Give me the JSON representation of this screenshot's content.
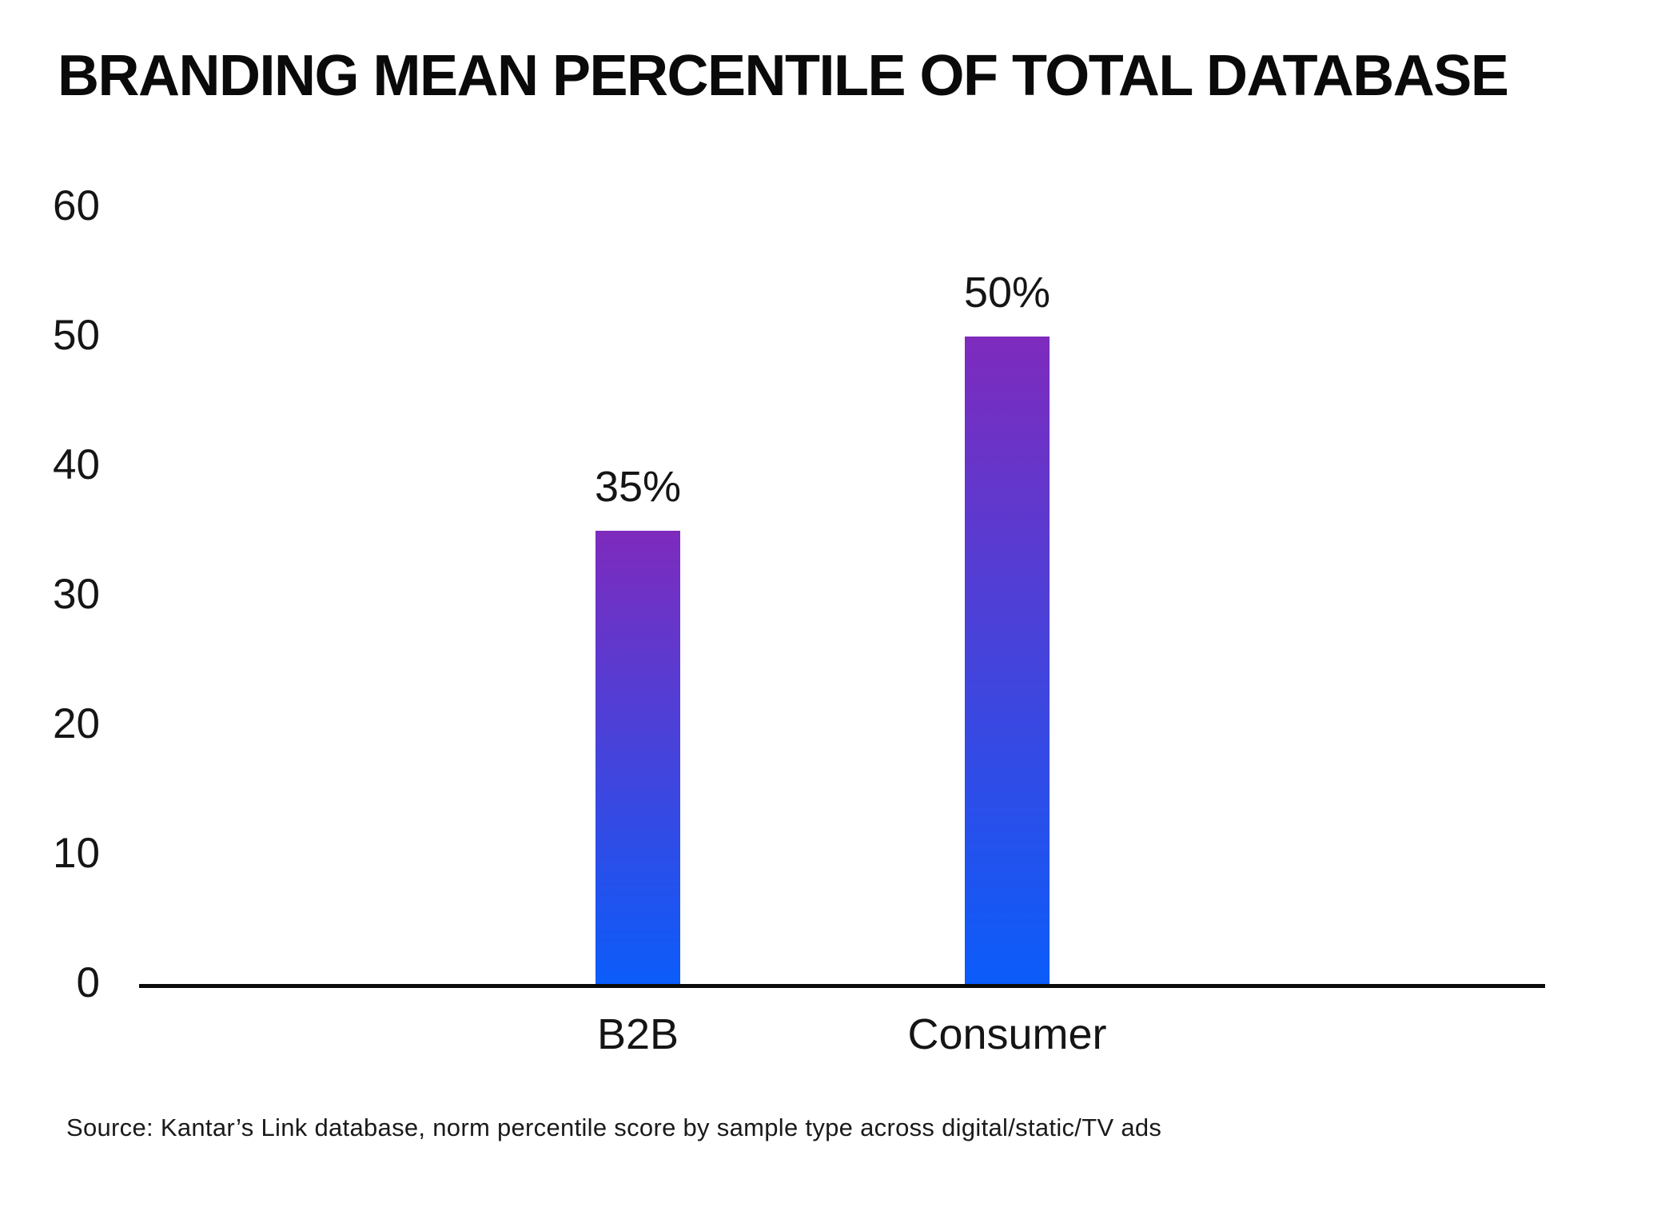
{
  "title": "BRANDING MEAN PERCENTILE OF TOTAL DATABASE",
  "source": "Source: Kantar’s Link database, norm percentile score by sample type across digital/static/TV ads",
  "chart_data": {
    "type": "bar",
    "title": "BRANDING MEAN PERCENTILE OF TOTAL DATABASE",
    "categories": [
      "B2B",
      "Consumer"
    ],
    "values": [
      35,
      50
    ],
    "data_labels": [
      "35%",
      "50%"
    ],
    "y_ticks": [
      0,
      10,
      20,
      30,
      40,
      50,
      60
    ],
    "ylim": [
      0,
      60
    ],
    "xlabel": "",
    "ylabel": "",
    "grid": false,
    "legend": false,
    "colors": {
      "bar_gradient_top": "#7E2BBD",
      "bar_gradient_bottom": "#0B5CFA",
      "axis": "#0a0a0a",
      "text": "#151515",
      "background": "#ffffff"
    },
    "annotations": "Source: Kantar’s Link database, norm percentile score by sample type across digital/static/TV ads"
  }
}
